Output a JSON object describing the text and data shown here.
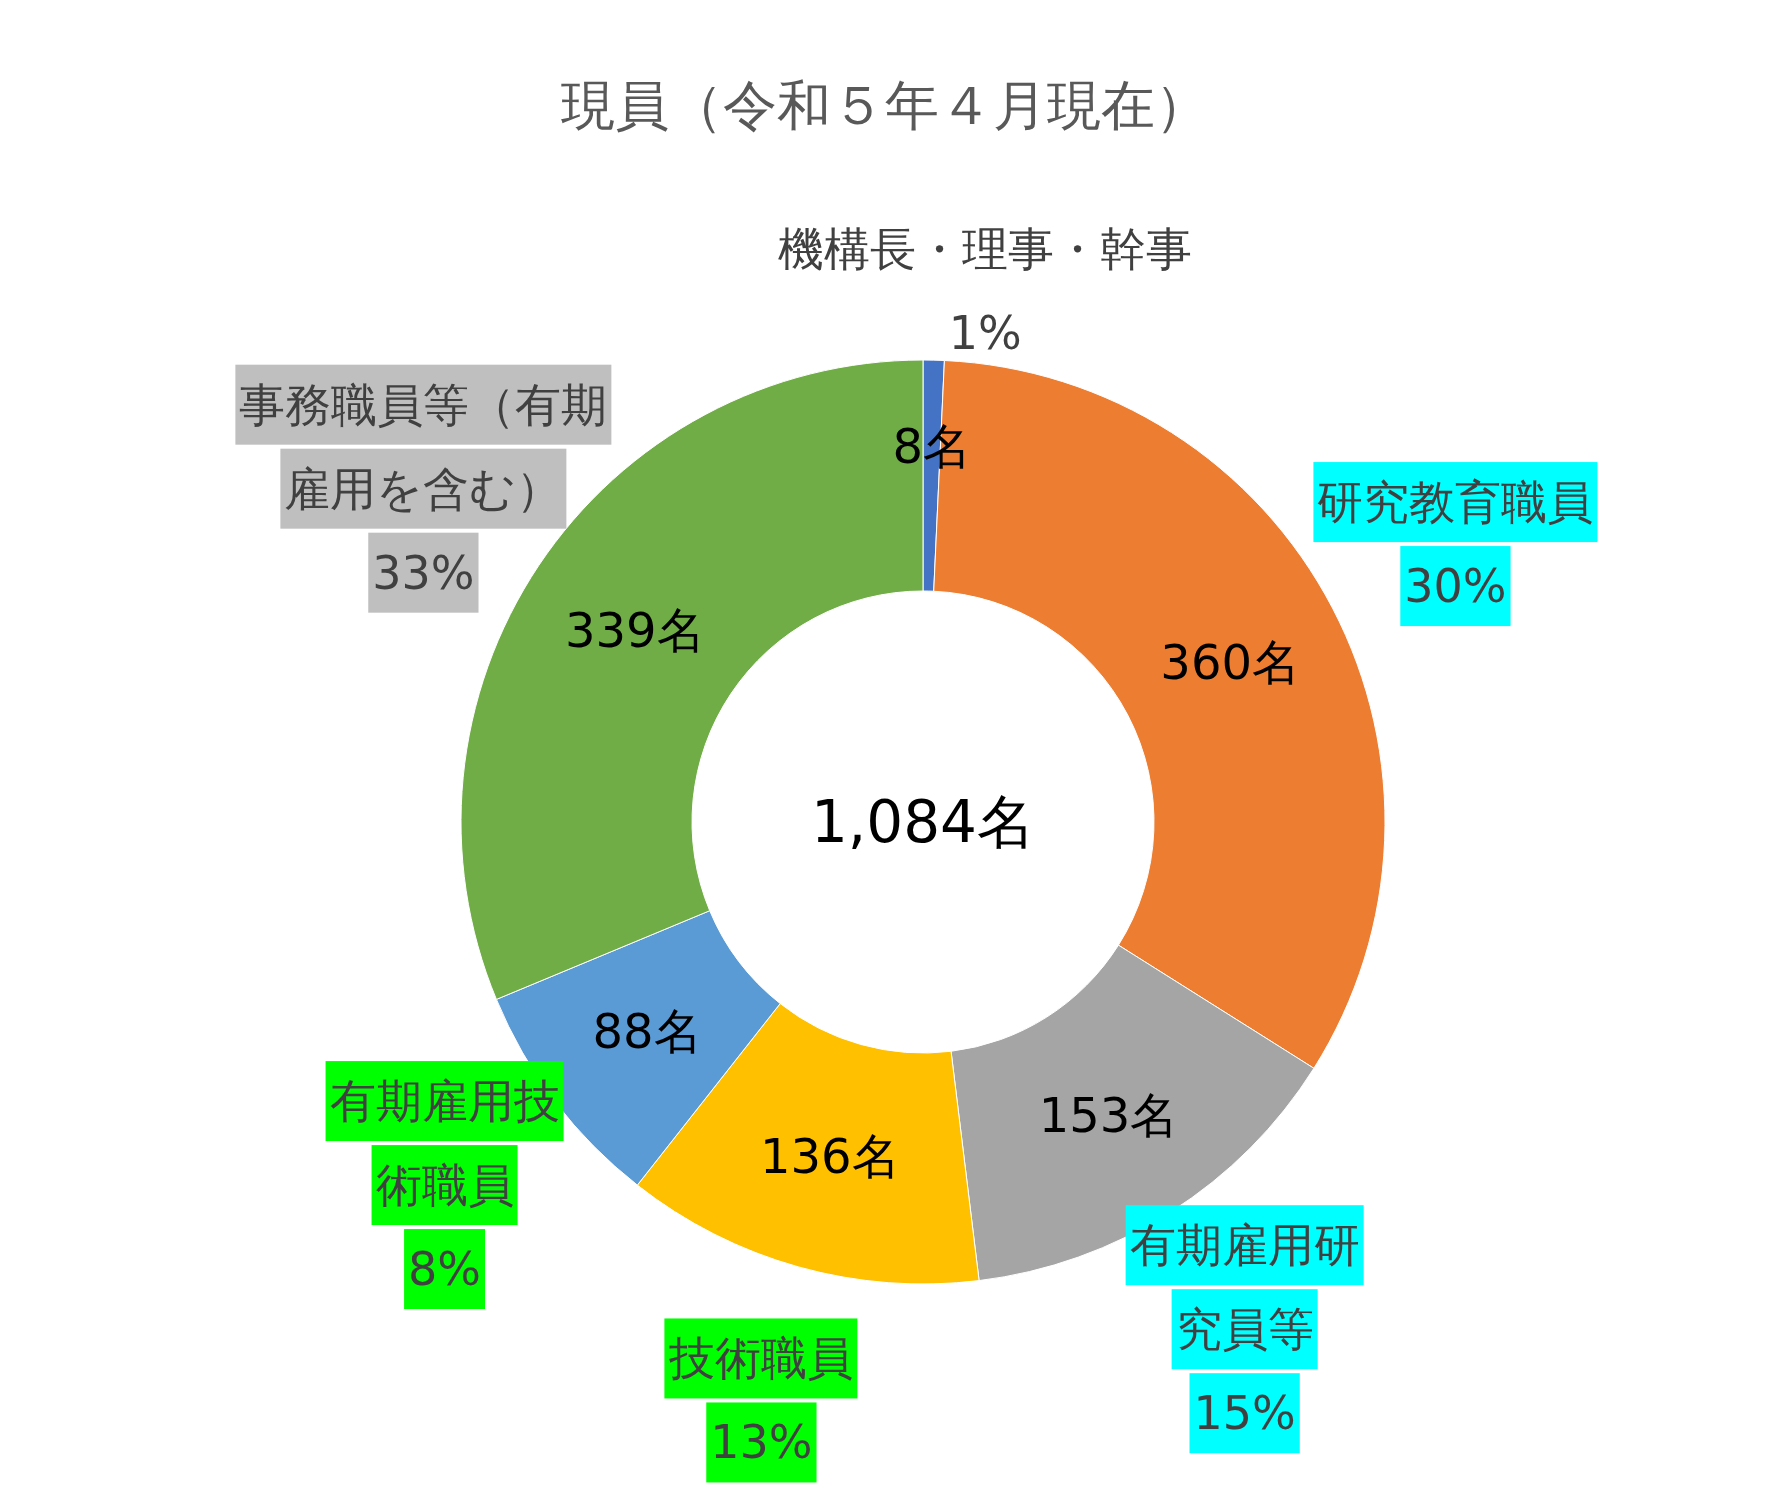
{
  "chart_data": {
    "type": "donut",
    "title": "現員（令和５年４月現在）",
    "categories": [
      "機構長・理事・幹事",
      "研究教育職員",
      "有期雇用研究員等",
      "技術職員",
      "有期雇用技術職員",
      "事務職員等（有期雇用を含む）"
    ],
    "values": [
      8,
      360,
      153,
      136,
      88,
      339
    ],
    "colors": [
      "#4472c4",
      "#ed7d31",
      "#a5a5a5",
      "#ffc000",
      "#5b9bd5",
      "#70ad47"
    ],
    "value_labels": [
      "8名",
      "360名",
      "153名",
      "136名",
      "88名",
      "339名"
    ],
    "annotations": [
      "1,084名",
      {
        "text": "1%",
        "x": "機構長・理事・幹事"
      },
      {
        "text": "30%",
        "x": "研究教育職員"
      },
      {
        "text": "15%",
        "x": "有期雇用研究員等"
      },
      {
        "text": "13%",
        "x": "技術職員"
      },
      {
        "text": "8%",
        "x": "有期雇用技術職員"
      },
      {
        "text": "33%",
        "x": "事務職員等（有期雇用を含む）"
      }
    ]
  }
}
